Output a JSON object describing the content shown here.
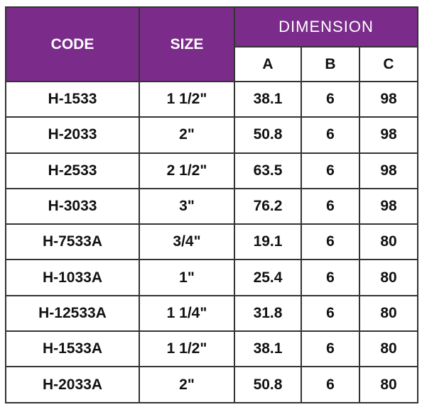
{
  "header": {
    "code": "CODE",
    "size": "SIZE",
    "dimension": "DIMENSION",
    "sub": [
      "A",
      "B",
      "C"
    ]
  },
  "table": {
    "rows": [
      [
        "H-1533",
        "1 1/2\"",
        "38.1",
        "6",
        "98"
      ],
      [
        "H-2033",
        "2\"",
        "50.8",
        "6",
        "98"
      ],
      [
        "H-2533",
        "2 1/2\"",
        "63.5",
        "6",
        "98"
      ],
      [
        "H-3033",
        "3\"",
        "76.2",
        "6",
        "98"
      ],
      [
        "H-7533A",
        "3/4\"",
        "19.1",
        "6",
        "80"
      ],
      [
        "H-1033A",
        "1\"",
        "25.4",
        "6",
        "80"
      ],
      [
        "H-12533A",
        "1 1/4\"",
        "31.8",
        "6",
        "80"
      ],
      [
        "H-1533A",
        "1 1/2\"",
        "38.1",
        "6",
        "80"
      ],
      [
        "H-2033A",
        "2\"",
        "50.8",
        "6",
        "80"
      ]
    ]
  }
}
